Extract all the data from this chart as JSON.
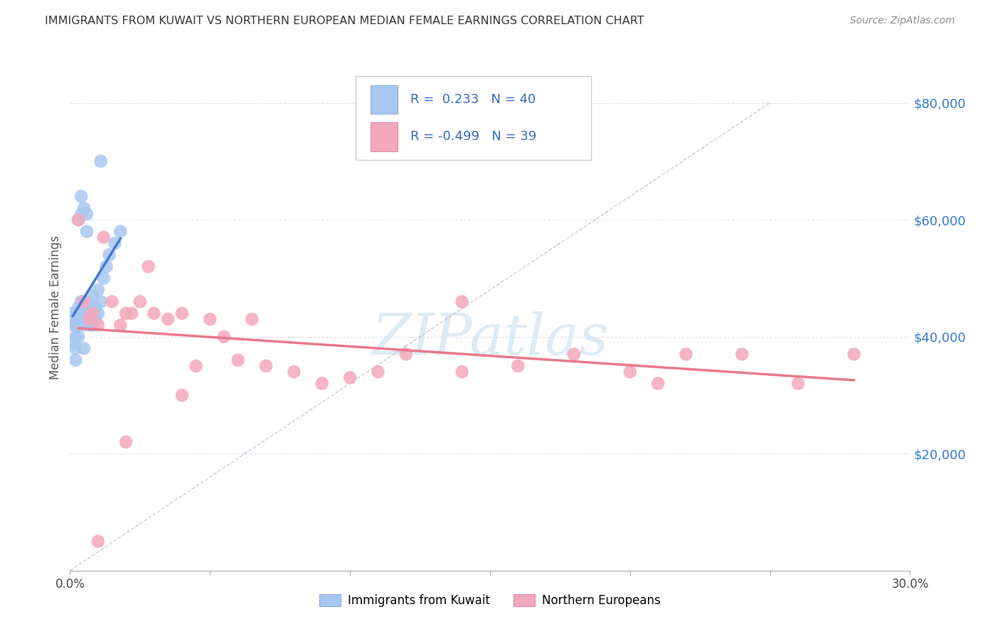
{
  "title": "IMMIGRANTS FROM KUWAIT VS NORTHERN EUROPEAN MEDIAN FEMALE EARNINGS CORRELATION CHART",
  "source": "Source: ZipAtlas.com",
  "ylabel": "Median Female Earnings",
  "xlim": [
    0.0,
    0.3
  ],
  "ylim": [
    0,
    90000
  ],
  "yticks": [
    20000,
    40000,
    60000,
    80000
  ],
  "ytick_labels": [
    "$20,000",
    "$40,000",
    "$60,000",
    "$80,000"
  ],
  "xticks": [
    0.0,
    0.05,
    0.1,
    0.15,
    0.2,
    0.25,
    0.3
  ],
  "xtick_labels": [
    "0.0%",
    "",
    "",
    "",
    "",
    "",
    "30.0%"
  ],
  "legend_label1": "Immigrants from Kuwait",
  "legend_label2": "Northern Europeans",
  "color_kuwait": "#a8c8f0",
  "color_northern": "#f4a8bc",
  "color_kuwait_line": "#4477cc",
  "color_northern_line": "#e8788a",
  "color_diag": "#b0b0c8",
  "R1": 0.233,
  "N1": 40,
  "R2": -0.499,
  "N2": 39,
  "kuwait_x": [
    0.001,
    0.001,
    0.001,
    0.001,
    0.002,
    0.002,
    0.002,
    0.002,
    0.003,
    0.003,
    0.003,
    0.003,
    0.003,
    0.004,
    0.004,
    0.004,
    0.004,
    0.005,
    0.005,
    0.005,
    0.005,
    0.006,
    0.006,
    0.006,
    0.007,
    0.007,
    0.008,
    0.008,
    0.008,
    0.009,
    0.009,
    0.01,
    0.01,
    0.011,
    0.011,
    0.012,
    0.013,
    0.014,
    0.016,
    0.018
  ],
  "kuwait_y": [
    39000,
    42000,
    43000,
    44000,
    36000,
    38000,
    40000,
    42000,
    40000,
    43000,
    44000,
    45000,
    60000,
    44000,
    46000,
    61000,
    64000,
    38000,
    42000,
    44000,
    62000,
    44000,
    58000,
    61000,
    42000,
    46000,
    42000,
    44000,
    47000,
    43000,
    45000,
    44000,
    48000,
    46000,
    70000,
    50000,
    52000,
    54000,
    56000,
    58000
  ],
  "northern_x": [
    0.003,
    0.005,
    0.007,
    0.008,
    0.01,
    0.012,
    0.015,
    0.018,
    0.02,
    0.022,
    0.025,
    0.028,
    0.03,
    0.035,
    0.04,
    0.045,
    0.05,
    0.055,
    0.06,
    0.065,
    0.07,
    0.08,
    0.09,
    0.1,
    0.11,
    0.12,
    0.14,
    0.16,
    0.18,
    0.2,
    0.21,
    0.22,
    0.24,
    0.26,
    0.28,
    0.01,
    0.02,
    0.04,
    0.14
  ],
  "northern_y": [
    60000,
    46000,
    43000,
    44000,
    42000,
    57000,
    46000,
    42000,
    44000,
    44000,
    46000,
    52000,
    44000,
    43000,
    44000,
    35000,
    43000,
    40000,
    36000,
    43000,
    35000,
    34000,
    32000,
    33000,
    34000,
    37000,
    34000,
    35000,
    37000,
    34000,
    32000,
    37000,
    37000,
    32000,
    37000,
    5000,
    22000,
    30000,
    46000
  ]
}
